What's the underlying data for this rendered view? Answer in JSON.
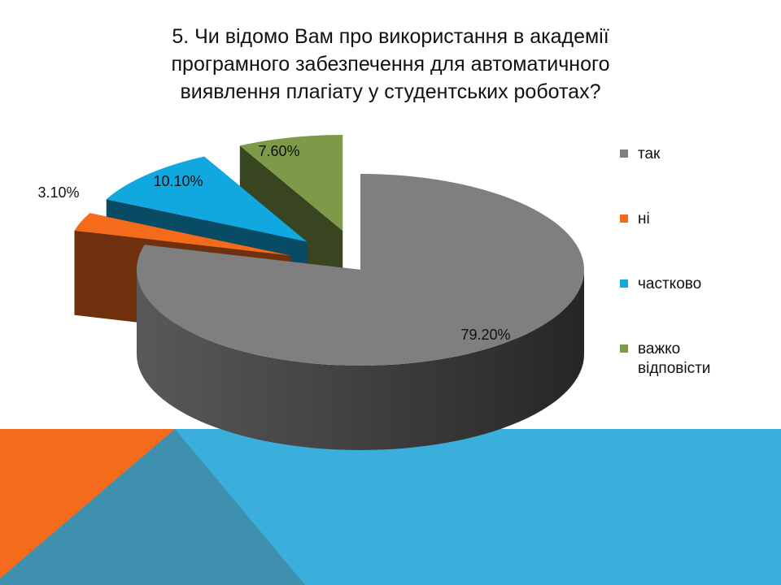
{
  "slide": {
    "title_lines": [
      "5. Чи відомо Вам про використання в академії",
      "програмного забезпечення для автоматичного",
      "виявлення плагіату у студентських роботах?"
    ]
  },
  "chart_data": {
    "type": "pie",
    "style": "3d-exploded",
    "categories": [
      "так",
      "ні",
      "частково",
      "важко відповісти"
    ],
    "values": [
      79.2,
      3.1,
      10.1,
      7.6
    ],
    "data_labels": [
      "79.20%",
      "3.10%",
      "10.10%",
      "7.60%"
    ],
    "colors": [
      "#7f7f7f",
      "#f46b1c",
      "#11a7df",
      "#7d9a48"
    ],
    "legend_position": "right",
    "title": "5. Чи відомо Вам про використання в академії програмного забезпечення для автоматичного виявлення плагіату у студентських роботах?"
  },
  "legend": {
    "items": [
      {
        "lines": [
          "так"
        ],
        "color": "#7f7f7f"
      },
      {
        "lines": [
          "ні"
        ],
        "color": "#f46b1c"
      },
      {
        "lines": [
          "частково"
        ],
        "color": "#11a7df"
      },
      {
        "lines": [
          "важко",
          "відповісти"
        ],
        "color": "#7d9a48"
      }
    ]
  },
  "decor": {
    "band_colors": [
      "#3aafdc",
      "#3f8fae",
      "#f46b1c"
    ]
  }
}
